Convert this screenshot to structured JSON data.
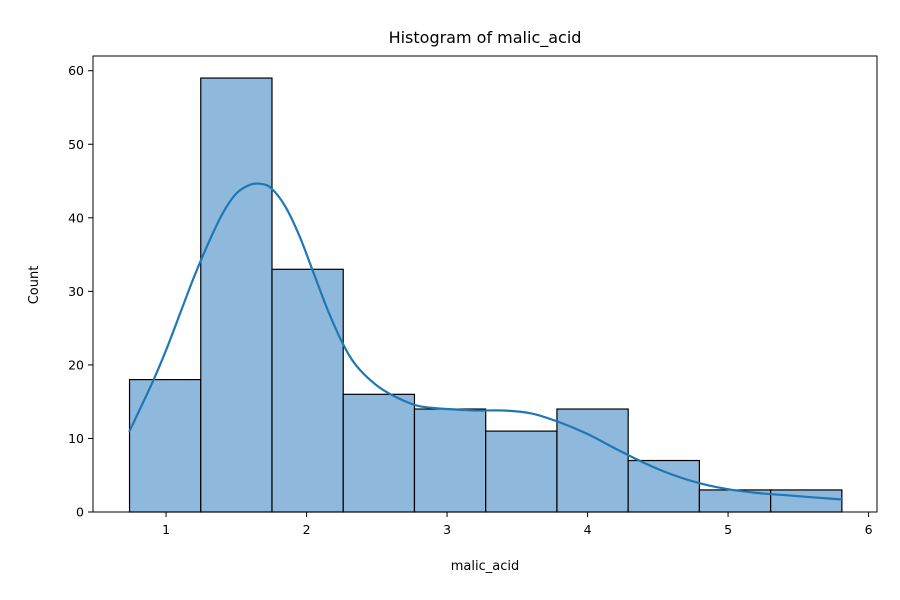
{
  "chart_data": {
    "type": "bar",
    "subtype": "histogram-with-kde",
    "title": "Histogram of malic_acid",
    "xlabel": "malic_acid",
    "ylabel": "Count",
    "xlim": [
      0.48,
      6.06
    ],
    "ylim": [
      0,
      62
    ],
    "xticks": [
      1,
      2,
      3,
      4,
      5,
      6
    ],
    "yticks": [
      0,
      10,
      20,
      30,
      40,
      50,
      60
    ],
    "grid": false,
    "legend": "none",
    "bins": [
      {
        "x0": 0.74,
        "x1": 1.247,
        "count": 18
      },
      {
        "x0": 1.247,
        "x1": 1.754,
        "count": 59
      },
      {
        "x0": 1.754,
        "x1": 2.261,
        "count": 33
      },
      {
        "x0": 2.261,
        "x1": 2.768,
        "count": 16
      },
      {
        "x0": 2.768,
        "x1": 3.275,
        "count": 14
      },
      {
        "x0": 3.275,
        "x1": 3.782,
        "count": 11
      },
      {
        "x0": 3.782,
        "x1": 4.289,
        "count": 14
      },
      {
        "x0": 4.289,
        "x1": 4.796,
        "count": 7
      },
      {
        "x0": 4.796,
        "x1": 5.303,
        "count": 3
      },
      {
        "x0": 5.303,
        "x1": 5.81,
        "count": 3
      }
    ],
    "kde": {
      "x": [
        0.74,
        0.9,
        1.0,
        1.1,
        1.2,
        1.3,
        1.4,
        1.5,
        1.6,
        1.68,
        1.75,
        1.85,
        1.95,
        2.05,
        2.15,
        2.25,
        2.35,
        2.5,
        2.65,
        2.8,
        3.0,
        3.2,
        3.4,
        3.6,
        3.8,
        4.0,
        4.2,
        4.4,
        4.6,
        4.8,
        5.0,
        5.2,
        5.4,
        5.6,
        5.81
      ],
      "y": [
        11,
        17.5,
        22,
        27,
        32,
        36.5,
        40.5,
        43.3,
        44.5,
        44.6,
        44.0,
        41.5,
        37.5,
        32.5,
        27.5,
        23.2,
        20.0,
        17.2,
        15.5,
        14.4,
        14.0,
        13.8,
        13.8,
        13.4,
        12.2,
        10.6,
        8.6,
        6.7,
        5.1,
        3.9,
        3.1,
        2.6,
        2.3,
        2.0,
        1.7
      ]
    },
    "colors": {
      "bar_fill": "#8fb9dc",
      "bar_edge": "#000000",
      "kde_line": "#1f77b4"
    }
  }
}
